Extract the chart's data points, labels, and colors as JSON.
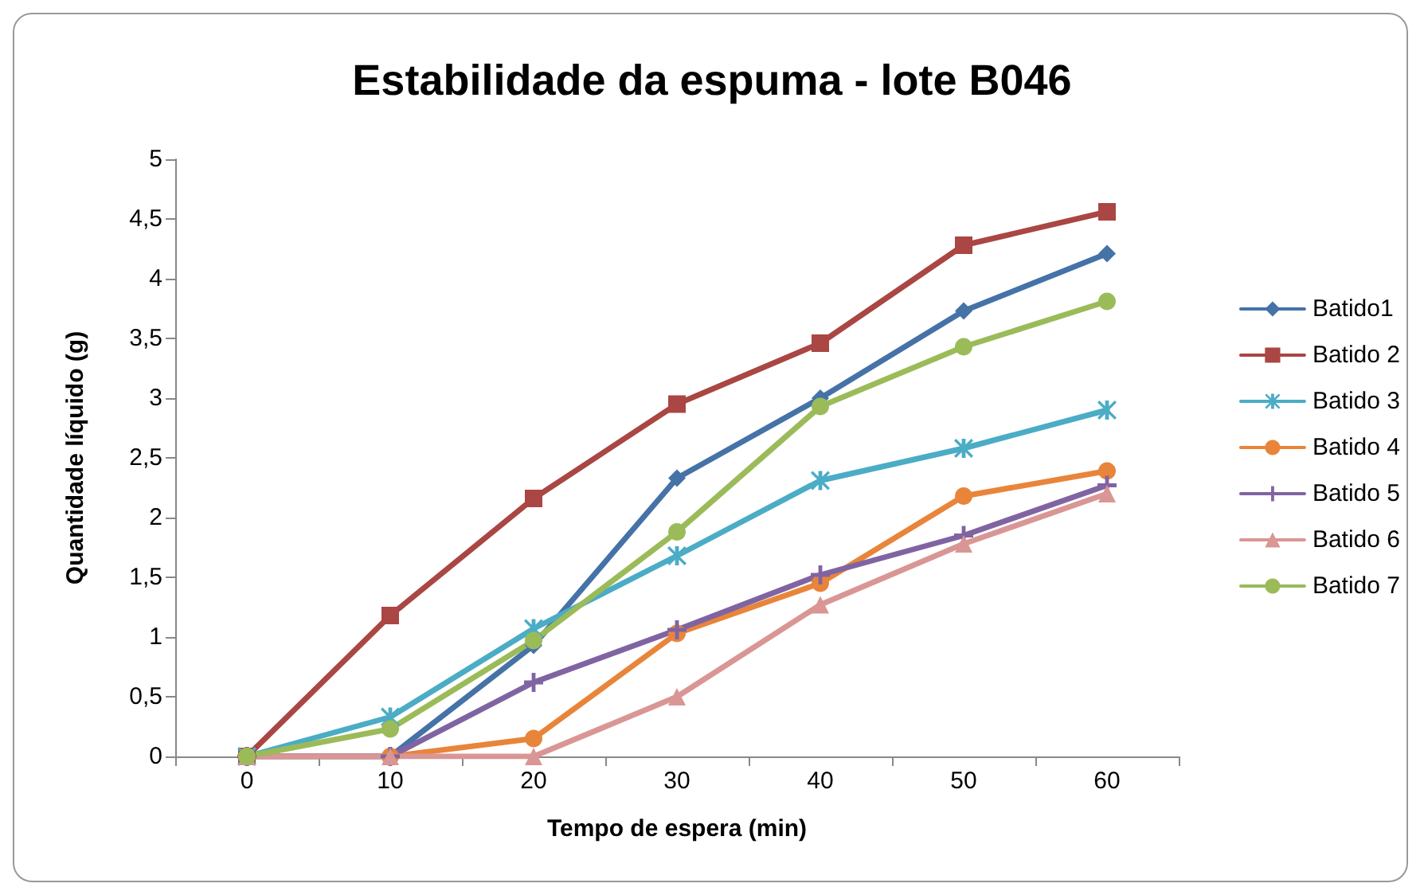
{
  "chart_data": {
    "type": "line",
    "title": "Estabilidade da espuma - lote B046",
    "xlabel": "Tempo de espera (min)",
    "ylabel": "Quantidade líquido (g)",
    "categories": [
      "0",
      "10",
      "20",
      "30",
      "40",
      "50",
      "60"
    ],
    "series": [
      {
        "name": "Batido1",
        "color": "#4572a7",
        "marker": "diamond",
        "values": [
          0,
          0,
          0.93,
          2.33,
          3.0,
          3.73,
          4.21
        ]
      },
      {
        "name": "Batido 2",
        "color": "#aa4643",
        "marker": "square",
        "values": [
          0,
          1.18,
          2.16,
          2.95,
          3.46,
          4.28,
          4.56
        ]
      },
      {
        "name": "Batido 3",
        "color": "#4bacc6",
        "marker": "star",
        "values": [
          0,
          0.33,
          1.07,
          1.68,
          2.31,
          2.58,
          2.9
        ]
      },
      {
        "name": "Batido 4",
        "color": "#e8853a",
        "marker": "circle",
        "values": [
          0,
          0,
          0.15,
          1.03,
          1.45,
          2.18,
          2.39
        ]
      },
      {
        "name": "Batido 5",
        "color": "#8064a2",
        "marker": "cross",
        "values": [
          0,
          0,
          0.62,
          1.06,
          1.52,
          1.85,
          2.27
        ]
      },
      {
        "name": "Batido 6",
        "color": "#d99694",
        "marker": "triangle",
        "values": [
          0,
          0,
          0,
          0.5,
          1.27,
          1.78,
          2.2
        ]
      },
      {
        "name": "Batido 7",
        "color": "#9bbb59",
        "marker": "circle",
        "values": [
          0,
          0.23,
          0.97,
          1.88,
          2.93,
          3.43,
          3.81
        ]
      }
    ],
    "ylim": [
      0,
      5
    ],
    "yticks": [
      0,
      {
        "value": 0.5,
        "label": "0,5"
      },
      1,
      {
        "value": 1.5,
        "label": "1,5"
      },
      2,
      {
        "value": 2.5,
        "label": "2,5"
      },
      3,
      {
        "value": 3.5,
        "label": "3,5"
      },
      4,
      {
        "value": 4.5,
        "label": "4,5"
      },
      5
    ],
    "grid": false,
    "legend": "right",
    "line_style": "solid"
  }
}
